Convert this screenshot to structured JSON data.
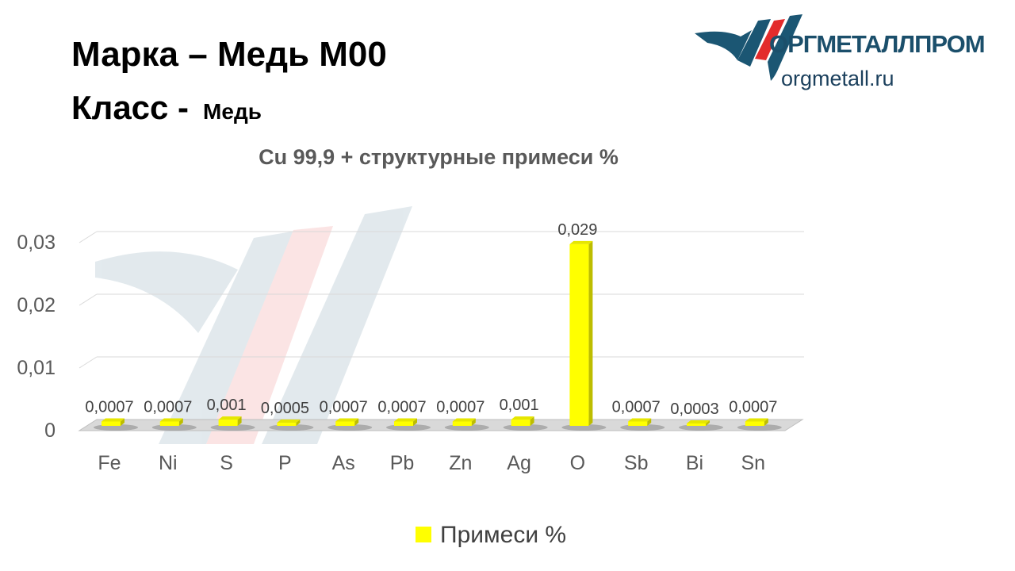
{
  "header": {
    "title": "Марка – Медь М00",
    "class_label": "Класс -",
    "class_value": "Медь"
  },
  "logo": {
    "brand": "ОРГМЕТАЛЛПРОМ",
    "url": "orgmetall.ru"
  },
  "chart_data": {
    "type": "bar",
    "title": "Cu 99,9 + структурные примеси %",
    "categories": [
      "Fe",
      "Ni",
      "S",
      "P",
      "As",
      "Pb",
      "Zn",
      "Ag",
      "O",
      "Sb",
      "Bi",
      "Sn"
    ],
    "series": [
      {
        "name": "Примеси %",
        "color": "#ffff00",
        "values": [
          0.0007,
          0.0007,
          0.001,
          0.0005,
          0.0007,
          0.0007,
          0.0007,
          0.001,
          0.029,
          0.0007,
          0.0003,
          0.0007
        ]
      }
    ],
    "data_labels": [
      "0,0007",
      "0,0007",
      "0,001",
      "0,0005",
      "0,0007",
      "0,0007",
      "0,0007",
      "0,001",
      "0,029",
      "0,0007",
      "0,0003",
      "0,0007"
    ],
    "yticks": [
      {
        "v": 0,
        "label": "0"
      },
      {
        "v": 0.01,
        "label": "0,01"
      },
      {
        "v": 0.02,
        "label": "0,02"
      },
      {
        "v": 0.03,
        "label": "0,03"
      }
    ],
    "ylim": [
      0,
      0.03
    ],
    "grid": true,
    "legend": "bottom",
    "legend_label": "Примеси %"
  }
}
